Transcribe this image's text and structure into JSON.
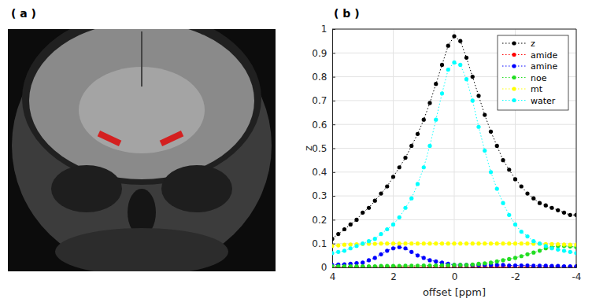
{
  "panel_labels": [
    "( a )",
    "( b )"
  ],
  "chart_data": {
    "type": "line",
    "x_label": "offset [ppm]",
    "y_label": "z",
    "xlim": [
      4,
      -4
    ],
    "xticks": [
      4,
      2,
      0,
      -2,
      -4
    ],
    "ylim": [
      0,
      1
    ],
    "yticks": [
      0,
      0.1,
      0.2,
      0.3,
      0.4,
      0.5,
      0.6,
      0.7,
      0.8,
      0.9,
      1
    ],
    "grid": true,
    "legend": "northeast",
    "marker": "circle",
    "line_style": "dotted",
    "x": [
      4,
      3.8,
      3.6,
      3.4,
      3.2,
      3,
      2.8,
      2.6,
      2.4,
      2.2,
      2,
      1.8,
      1.6,
      1.4,
      1.2,
      1,
      0.8,
      0.6,
      0.4,
      0.2,
      0,
      -0.2,
      -0.4,
      -0.6,
      -0.8,
      -1,
      -1.2,
      -1.4,
      -1.6,
      -1.8,
      -2,
      -2.2,
      -2.4,
      -2.6,
      -2.8,
      -3,
      -3.2,
      -3.4,
      -3.6,
      -3.8,
      -4
    ],
    "series": [
      {
        "name": "z",
        "color": "#000000",
        "values": [
          0.12,
          0.14,
          0.16,
          0.18,
          0.2,
          0.23,
          0.25,
          0.28,
          0.31,
          0.34,
          0.38,
          0.42,
          0.46,
          0.51,
          0.56,
          0.62,
          0.69,
          0.77,
          0.85,
          0.93,
          0.97,
          0.95,
          0.88,
          0.8,
          0.72,
          0.64,
          0.57,
          0.51,
          0.45,
          0.41,
          0.37,
          0.34,
          0.31,
          0.29,
          0.27,
          0.26,
          0.25,
          0.24,
          0.23,
          0.22,
          0.22
        ]
      },
      {
        "name": "amide",
        "color": "#ff0000",
        "values": [
          0.002,
          0.002,
          0.002,
          0.002,
          0.002,
          0.002,
          0.002,
          0.002,
          0.002,
          0.002,
          0.002,
          0.002,
          0.002,
          0.002,
          0.002,
          0.002,
          0.002,
          0.002,
          0.002,
          0.002,
          0.002,
          0.002,
          0.002,
          0.002,
          0.002,
          0.002,
          0.002,
          0.002,
          0.002,
          0.002,
          0.002,
          0.002,
          0.002,
          0.002,
          0.002,
          0.002,
          0.002,
          0.002,
          0.002,
          0.002,
          0.002
        ]
      },
      {
        "name": "amine",
        "color": "#0000ff",
        "values": [
          0.01,
          0.012,
          0.013,
          0.015,
          0.018,
          0.02,
          0.03,
          0.04,
          0.055,
          0.07,
          0.08,
          0.085,
          0.08,
          0.065,
          0.05,
          0.04,
          0.03,
          0.025,
          0.02,
          0.015,
          0.01,
          0.01,
          0.01,
          0.01,
          0.01,
          0.01,
          0.01,
          0.01,
          0.01,
          0.008,
          0.008,
          0.008,
          0.008,
          0.007,
          0.007,
          0.007,
          0.006,
          0.006,
          0.005,
          0.005,
          0.005
        ]
      },
      {
        "name": "noe",
        "color": "#22dd22",
        "values": [
          0.005,
          0.005,
          0.005,
          0.005,
          0.005,
          0.005,
          0.005,
          0.005,
          0.006,
          0.006,
          0.006,
          0.006,
          0.007,
          0.007,
          0.007,
          0.008,
          0.008,
          0.008,
          0.009,
          0.009,
          0.01,
          0.01,
          0.01,
          0.012,
          0.015,
          0.017,
          0.02,
          0.025,
          0.03,
          0.035,
          0.04,
          0.047,
          0.055,
          0.062,
          0.07,
          0.08,
          0.085,
          0.09,
          0.09,
          0.088,
          0.085
        ]
      },
      {
        "name": "mt",
        "color": "#ffff00",
        "values": [
          0.09,
          0.092,
          0.095,
          0.096,
          0.097,
          0.098,
          0.099,
          0.099,
          0.1,
          0.1,
          0.1,
          0.1,
          0.1,
          0.1,
          0.1,
          0.1,
          0.1,
          0.1,
          0.1,
          0.1,
          0.1,
          0.1,
          0.1,
          0.1,
          0.1,
          0.1,
          0.1,
          0.1,
          0.1,
          0.1,
          0.1,
          0.1,
          0.1,
          0.099,
          0.099,
          0.098,
          0.098,
          0.097,
          0.096,
          0.095,
          0.095
        ]
      },
      {
        "name": "water",
        "color": "#00ffff",
        "values": [
          0.06,
          0.065,
          0.07,
          0.08,
          0.09,
          0.1,
          0.11,
          0.12,
          0.14,
          0.16,
          0.18,
          0.21,
          0.25,
          0.29,
          0.35,
          0.42,
          0.51,
          0.62,
          0.73,
          0.83,
          0.86,
          0.85,
          0.79,
          0.7,
          0.59,
          0.49,
          0.4,
          0.33,
          0.27,
          0.22,
          0.18,
          0.15,
          0.13,
          0.11,
          0.1,
          0.09,
          0.08,
          0.075,
          0.07,
          0.065,
          0.06
        ]
      }
    ]
  }
}
